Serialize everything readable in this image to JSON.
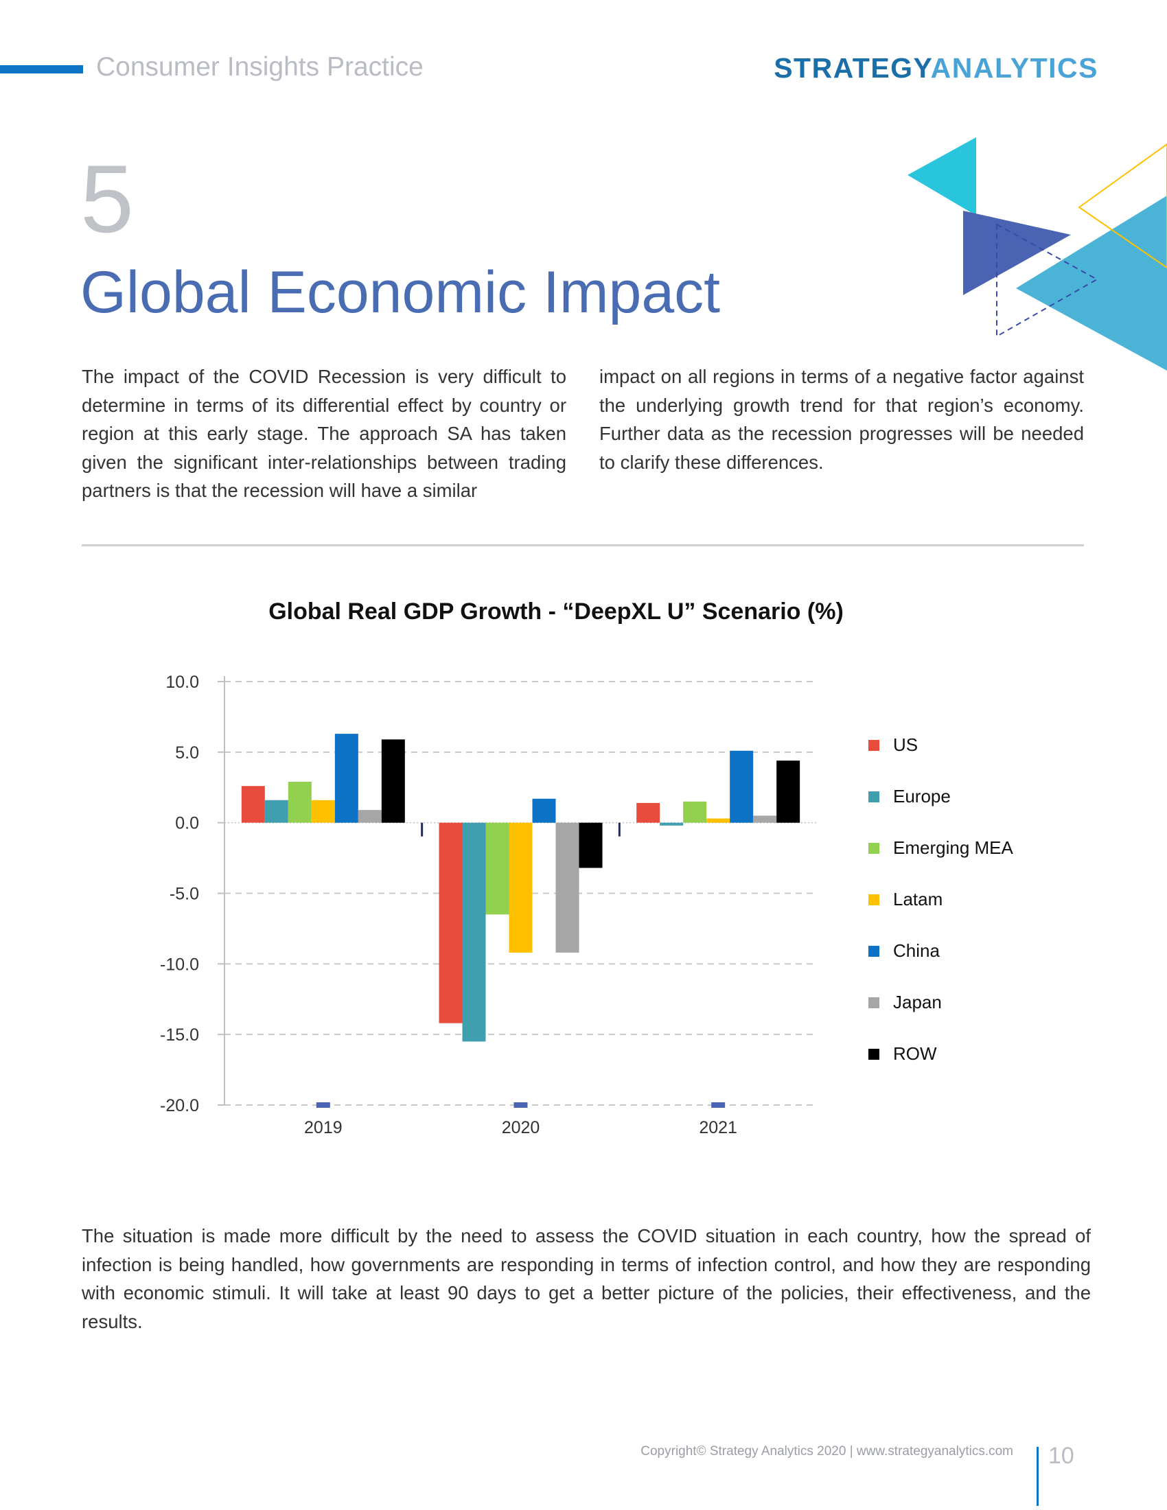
{
  "header": {
    "practice": "Consumer Insights Practice",
    "logo_part1": "STRATEGY",
    "logo_part2": "ANALYTICS"
  },
  "section": {
    "number": "5",
    "title": "Global Economic Impact"
  },
  "intro": {
    "left": "The impact of the COVID Recession is very difficult to determine in terms of its differential effect by country or region at this early stage. The approach SA has taken given the significant inter-relationships between trading partners is that the recession will have a similar",
    "right": "impact on all regions in terms of a negative factor against the underlying growth trend for that region’s economy. Further data as the recession progresses will be needed to clarify these differences."
  },
  "chart_data": {
    "type": "bar",
    "title": "Global Real GDP Growth - “DeepXL U” Scenario (%)",
    "categories": [
      "2019",
      "2020",
      "2021"
    ],
    "series": [
      {
        "name": "US",
        "color": "#e84c3d",
        "values": [
          2.6,
          -14.2,
          1.4
        ]
      },
      {
        "name": "Europe",
        "color": "#3f9fae",
        "values": [
          1.6,
          -15.5,
          -0.2
        ]
      },
      {
        "name": "Emerging MEA",
        "color": "#92d050",
        "values": [
          2.9,
          -6.5,
          1.5
        ]
      },
      {
        "name": "Latam",
        "color": "#ffc000",
        "values": [
          1.6,
          -9.2,
          0.3
        ]
      },
      {
        "name": "China",
        "color": "#0b72c6",
        "values": [
          6.3,
          1.7,
          5.1
        ]
      },
      {
        "name": "Japan",
        "color": "#a6a6a6",
        "values": [
          0.9,
          -9.2,
          0.5
        ]
      },
      {
        "name": "ROW",
        "color": "#000000",
        "values": [
          5.9,
          -3.2,
          4.4
        ]
      }
    ],
    "yticks": [
      "10.0",
      "5.0",
      "0.0",
      "-5.0",
      "-10.0",
      "-15.0",
      "-20.0"
    ],
    "ylim": [
      -20,
      10
    ],
    "xlabel": "",
    "ylabel": "",
    "legend_position": "right",
    "grid": true
  },
  "closing": "The situation is made more difficult by the need to assess the COVID situation in each country, how the spread of infection is being handled, how governments are responding in terms of infection control, and how they are responding with economic stimuli. It will take at least 90 days to get a better picture of the policies, their effectiveness, and the results.",
  "footer": {
    "copyright": "Copyright© Strategy Analytics 2020 | www.strategyanalytics.com",
    "page_number": "10"
  }
}
